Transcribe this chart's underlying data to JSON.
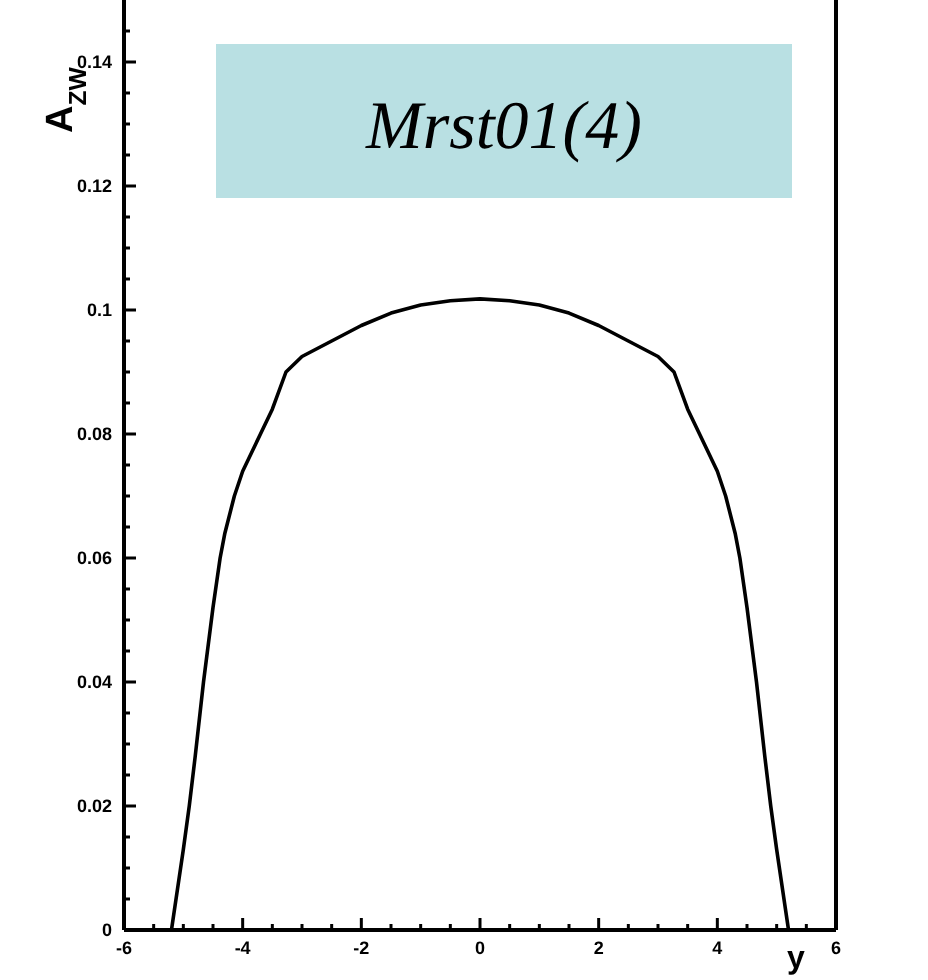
{
  "chart_data": {
    "type": "line",
    "title": "Mrst01(4)",
    "xlabel": "y",
    "ylabel": "A$_{ZW}$",
    "xlim": [
      -6,
      6
    ],
    "ylim": [
      0,
      0.15
    ],
    "xticks": [
      -6,
      {
        "value": -5.5,
        "label": null
      },
      -4,
      {
        "value": -4.5,
        "label": null
      },
      {
        "value": -5,
        "label": null
      },
      {
        "value": -3.5,
        "label": null
      },
      {
        "value": -3,
        "label": null
      },
      {
        "value": -2.5,
        "label": null
      },
      -2,
      {
        "value": -1.5,
        "label": null
      },
      {
        "value": -1,
        "label": null
      },
      {
        "value": -0.5,
        "label": null
      },
      0,
      {
        "value": 0.5,
        "label": null
      },
      {
        "value": 1,
        "label": null
      },
      {
        "value": 1.5,
        "label": null
      },
      2,
      {
        "value": 2.5,
        "label": null
      },
      {
        "value": 3,
        "label": null
      },
      {
        "value": 3.5,
        "label": null
      },
      4,
      {
        "value": 4.5,
        "label": null
      },
      {
        "value": 5,
        "label": null
      },
      {
        "value": 5.5,
        "label": null
      },
      6
    ],
    "yticks": [
      0,
      {
        "value": 0.005,
        "label": null
      },
      {
        "value": 0.01,
        "label": null
      },
      {
        "value": 0.015,
        "label": null
      },
      0.02,
      {
        "value": 0.025,
        "label": null
      },
      {
        "value": 0.03,
        "label": null
      },
      {
        "value": 0.035,
        "label": null
      },
      0.04,
      {
        "value": 0.045,
        "label": null
      },
      {
        "value": 0.05,
        "label": null
      },
      {
        "value": 0.055,
        "label": null
      },
      0.06,
      {
        "value": 0.065,
        "label": null
      },
      {
        "value": 0.07,
        "label": null
      },
      {
        "value": 0.075,
        "label": null
      },
      0.08,
      {
        "value": 0.085,
        "label": null
      },
      {
        "value": 0.09,
        "label": null
      },
      {
        "value": 0.095,
        "label": null
      },
      0.1,
      {
        "value": 0.105,
        "label": null
      },
      {
        "value": 0.11,
        "label": null
      },
      {
        "value": 0.115,
        "label": null
      },
      0.12,
      {
        "value": 0.125,
        "label": null
      },
      {
        "value": 0.13,
        "label": null
      },
      {
        "value": 0.135,
        "label": null
      },
      0.14,
      {
        "value": 0.145,
        "label": null
      }
    ],
    "grid": false,
    "marker": "none",
    "line_style": "solid",
    "series": [
      {
        "color": "#000000",
        "x": [
          -5.2,
          -5.0,
          -4.9,
          -4.8,
          -4.66,
          -4.5,
          -4.38,
          -4.3,
          -4.14,
          -4.0,
          -3.7,
          -3.5,
          -3.27,
          -3.0,
          -2.5,
          -2.0,
          -1.5,
          -1.0,
          -0.5,
          0,
          0.5,
          1.0,
          1.5,
          2.0,
          2.5,
          3.0,
          3.27,
          3.5,
          3.7,
          4.0,
          4.14,
          4.3,
          4.38,
          4.5,
          4.66,
          4.8,
          4.9,
          5.0,
          5.2
        ],
        "values": [
          0,
          0.013,
          0.02,
          0.028,
          0.04,
          0.052,
          0.06,
          0.064,
          0.07,
          0.074,
          0.08,
          0.084,
          0.09,
          0.0925,
          0.095,
          0.0975,
          0.0995,
          0.1008,
          0.1015,
          0.1018,
          0.1015,
          0.1008,
          0.0995,
          0.0975,
          0.095,
          0.0925,
          0.09,
          0.084,
          0.08,
          0.074,
          0.07,
          0.064,
          0.06,
          0.052,
          0.04,
          0.028,
          0.02,
          0.013,
          0
        ]
      }
    ]
  }
}
